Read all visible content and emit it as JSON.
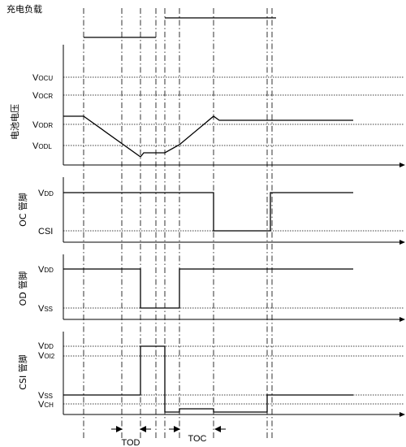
{
  "top_label": "充电负载",
  "panels": {
    "battery": {
      "axis_label": "电池电压",
      "levels": {
        "vocu": {
          "main": "V",
          "sub": "OCU"
        },
        "vocr": {
          "main": "V",
          "sub": "OCR"
        },
        "vodr": {
          "main": "V",
          "sub": "ODR"
        },
        "vodl": {
          "main": "V",
          "sub": "ODL"
        }
      }
    },
    "oc": {
      "axis_label": "OC 管脚",
      "levels": {
        "vdd": {
          "main": "V",
          "sub": "DD"
        },
        "csi": {
          "main": "CSI",
          "sub": ""
        }
      }
    },
    "od": {
      "axis_label": "OD 管脚",
      "levels": {
        "vdd": {
          "main": "V",
          "sub": "DD"
        },
        "vss": {
          "main": "V",
          "sub": "SS"
        }
      }
    },
    "csi": {
      "axis_label": "CSI 管脚",
      "levels": {
        "vdd": {
          "main": "V",
          "sub": "DD"
        },
        "voi2": {
          "main": "V",
          "sub": "OI2"
        },
        "vss": {
          "main": "V",
          "sub": "SS"
        },
        "vch": {
          "main": "V",
          "sub": "CH"
        }
      }
    }
  },
  "timing": {
    "tod": "TOD",
    "toc": "TOC"
  }
}
